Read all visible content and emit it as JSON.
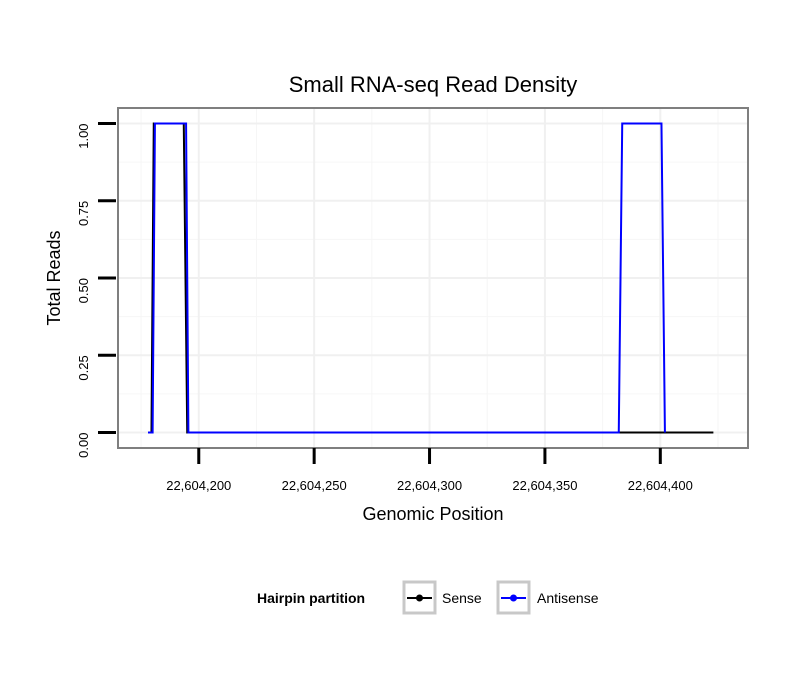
{
  "chart_data": {
    "type": "line",
    "title": "Small RNA-seq Read Density",
    "xlabel": "Genomic Position",
    "ylabel": "Total Reads",
    "xlim": [
      22604165,
      22604438
    ],
    "ylim": [
      -0.05,
      1.05
    ],
    "x_ticks": [
      22604200,
      22604250,
      22604300,
      22604350,
      22604400
    ],
    "x_tick_labels": [
      "22,604,200",
      "22,604,250",
      "22,604,300",
      "22,604,350",
      "22,604,400"
    ],
    "y_ticks": [
      0,
      0.25,
      0.5,
      0.75,
      1.0
    ],
    "y_tick_labels": [
      "0.00",
      "0.25",
      "0.50",
      "0.75",
      "1.00"
    ],
    "grid": true,
    "legend": {
      "title": "Hairpin partition",
      "position": "bottom"
    },
    "series": [
      {
        "name": "Sense",
        "color": "#000000",
        "x": [
          22604178,
          22604179.5,
          22604180.5,
          22604193.5,
          22604195,
          22604423
        ],
        "y": [
          0,
          0,
          1,
          1,
          0,
          0
        ]
      },
      {
        "name": "Antisense",
        "color": "#0000ff",
        "x": [
          22604178,
          22604180,
          22604181,
          22604194.5,
          22604195.5,
          22604382,
          22604383.5,
          22604400.5,
          22604402
        ],
        "y": [
          0,
          0,
          1,
          1,
          0,
          0,
          1,
          1,
          0
        ]
      }
    ]
  }
}
